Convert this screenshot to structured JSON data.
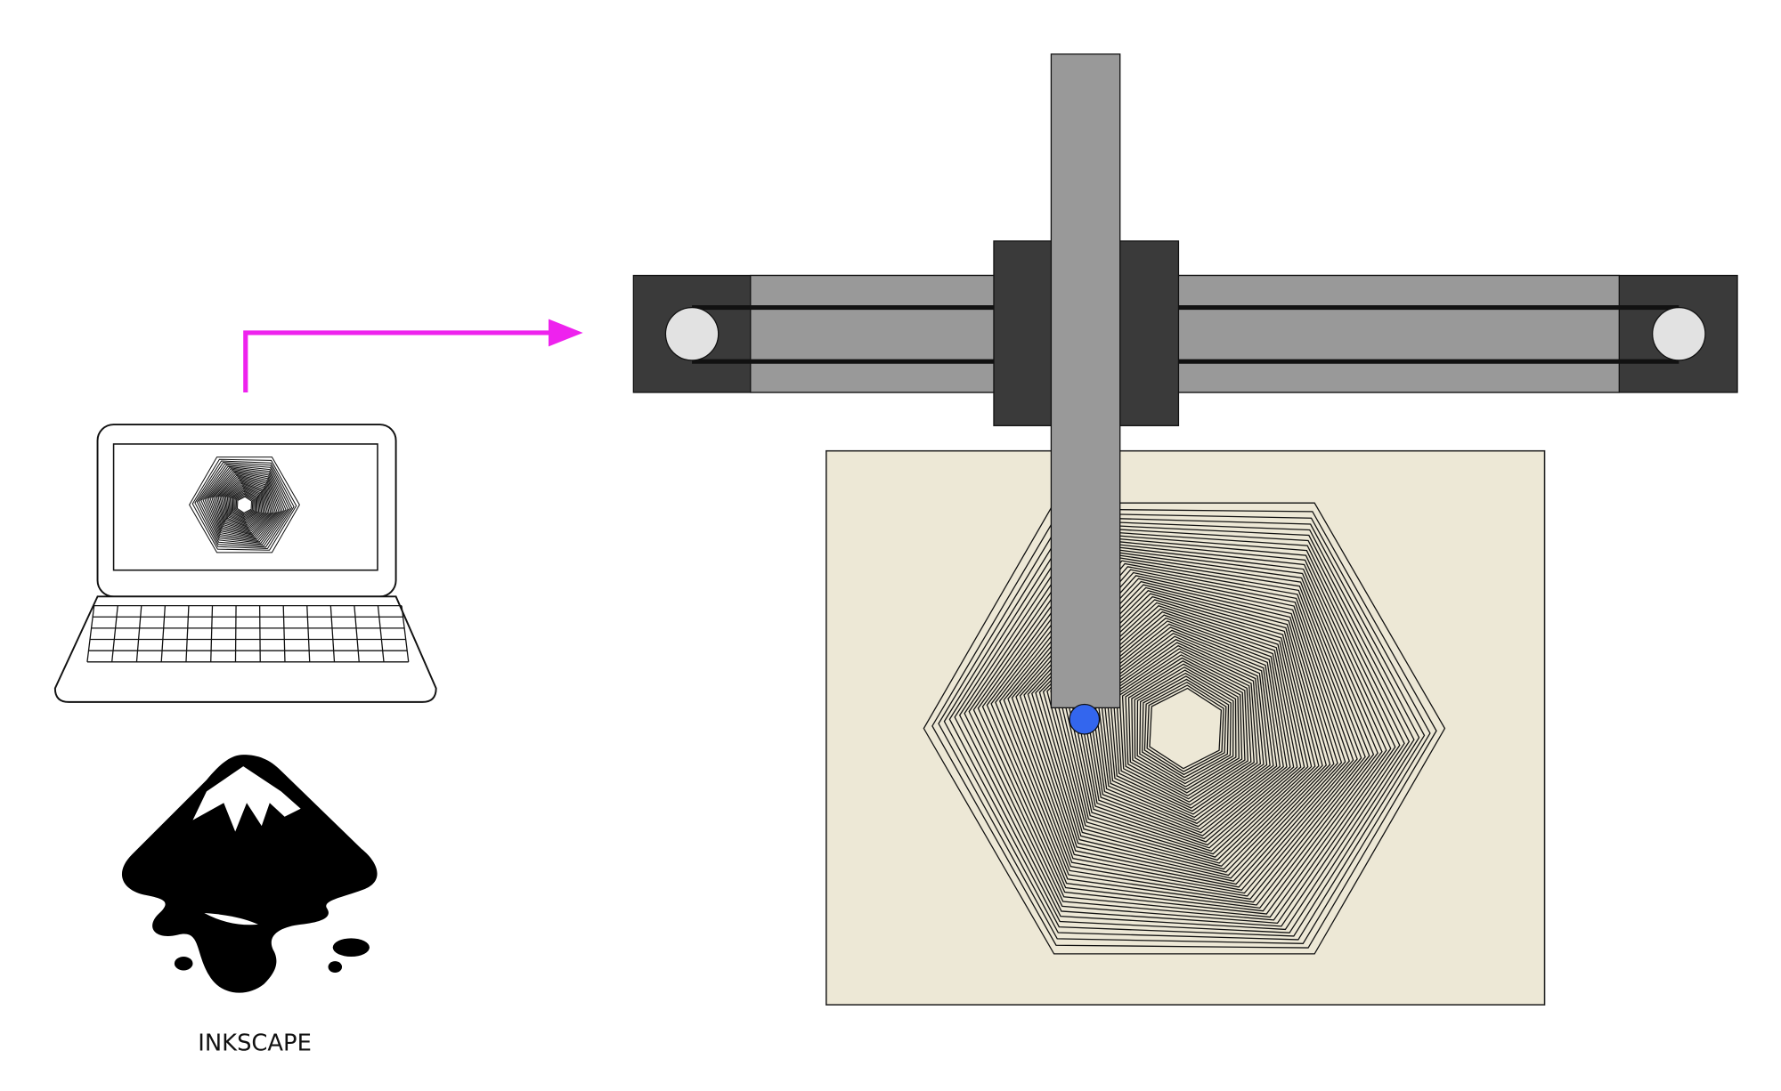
{
  "logo": {
    "label": "INKSCAPE"
  }
}
